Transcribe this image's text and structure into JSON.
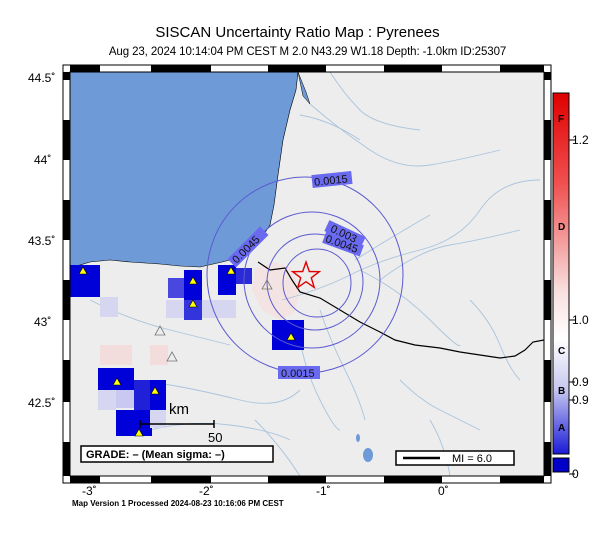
{
  "header": {
    "title": "SISCAN Uncertainty Ratio Map : Pyrenees",
    "subtitle": "Aug 23, 2024 10:14:04 PM CEST   M 2.0    N43.29 W1.18    Depth: -1.0km    ID:25307"
  },
  "map": {
    "lat_ticks": [
      "44.5˚",
      "44˚",
      "43.5˚",
      "43˚",
      "42.5˚"
    ],
    "lon_ticks": [
      "-3˚",
      "-2˚",
      "-1˚",
      "0˚"
    ],
    "contours": [
      "0.0015",
      "0.003",
      "0.0045",
      "0.0045",
      "0.0015"
    ],
    "epicenter": {
      "lat": 43.29,
      "lon": -1.18
    },
    "scalebar": {
      "unit": "km",
      "value": "50"
    },
    "grade_box": "GRADE: – (Mean sigma: –)",
    "mi_box": "MI = 6.0",
    "colors": {
      "sea": "#6f9ad8",
      "land": "#ededed",
      "high": "#0000d8",
      "star": "#e00000",
      "contour": "#5a5ad0"
    }
  },
  "colorbar": {
    "labels": [
      "1.2",
      "1.0",
      "0.9",
      "0.9",
      "0"
    ],
    "letters": [
      "F",
      "D",
      "C",
      "B",
      "A"
    ]
  },
  "footer": {
    "text": "Map Version 1 Processed 2024-08-23 10:16:06 PM CEST"
  }
}
